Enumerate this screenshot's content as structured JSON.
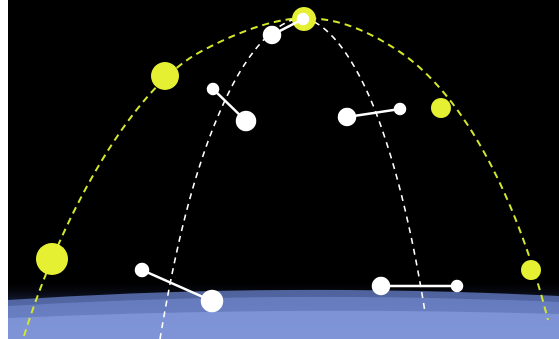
{
  "colors": {
    "space": "#000000",
    "outer_orbit": "#d4e72c",
    "inner_orbits": "#ffffff",
    "satellite_large": "#e5f032",
    "satellite_small": "#ffffff",
    "earth_core": "#5a6fb0",
    "earth_glow": "#9fb3ee",
    "page_border": "#ffffff"
  },
  "icons": {
    "large_satellite": "yellow-disc",
    "small_satellite": "white-dumbbell"
  }
}
